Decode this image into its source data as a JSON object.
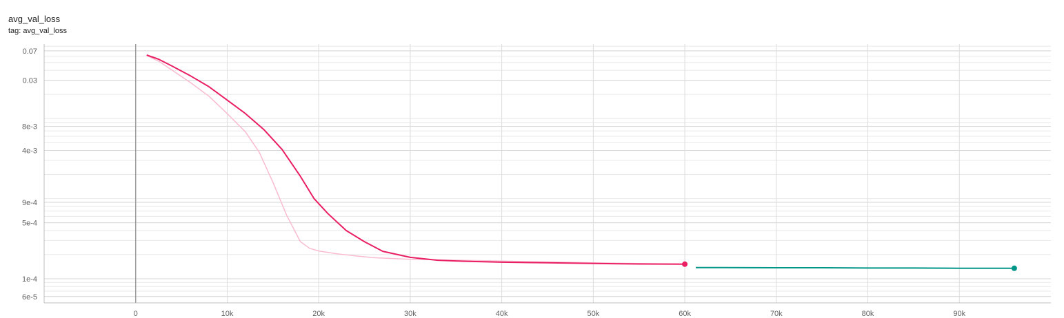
{
  "card": {
    "title": "avg_val_loss",
    "tag": "tag: avg_val_loss"
  },
  "chart_data": {
    "type": "line",
    "title": "avg_val_loss",
    "subtitle": "tag: avg_val_loss",
    "xlabel": "",
    "ylabel": "",
    "yscale": "log",
    "grid": true,
    "xlim": [
      -10000,
      100000
    ],
    "ylim": [
      5e-05,
      0.085
    ],
    "x_ticks": [
      {
        "value": 0,
        "label": "0"
      },
      {
        "value": 10000,
        "label": "10k"
      },
      {
        "value": 20000,
        "label": "20k"
      },
      {
        "value": 30000,
        "label": "30k"
      },
      {
        "value": 40000,
        "label": "40k"
      },
      {
        "value": 50000,
        "label": "50k"
      },
      {
        "value": 60000,
        "label": "60k"
      },
      {
        "value": 70000,
        "label": "70k"
      },
      {
        "value": 80000,
        "label": "80k"
      },
      {
        "value": 90000,
        "label": "90k"
      }
    ],
    "y_ticks": [
      {
        "value": 0.07,
        "label": "0.07"
      },
      {
        "value": 0.03,
        "label": "0.03"
      },
      {
        "value": 0.008,
        "label": "8e-3"
      },
      {
        "value": 0.004,
        "label": "4e-3"
      },
      {
        "value": 0.0009,
        "label": "9e-4"
      },
      {
        "value": 0.0005,
        "label": "5e-4"
      },
      {
        "value": 0.0001,
        "label": "1e-4"
      },
      {
        "value": 6e-05,
        "label": "6e-5"
      }
    ],
    "series": [
      {
        "color": "#e91e63",
        "raw_color": "#f8bbd0",
        "smoothed": [
          [
            1200,
            0.062
          ],
          [
            2500,
            0.055
          ],
          [
            4000,
            0.045
          ],
          [
            6000,
            0.034
          ],
          [
            8000,
            0.025
          ],
          [
            10000,
            0.017
          ],
          [
            12000,
            0.0115
          ],
          [
            14000,
            0.0073
          ],
          [
            16000,
            0.0041
          ],
          [
            18000,
            0.0019
          ],
          [
            19500,
            0.001
          ],
          [
            21000,
            0.00065
          ],
          [
            23000,
            0.0004
          ],
          [
            25000,
            0.00029
          ],
          [
            27000,
            0.00022
          ],
          [
            30000,
            0.000185
          ],
          [
            33000,
            0.00017
          ],
          [
            36000,
            0.000165
          ],
          [
            40000,
            0.000161
          ],
          [
            45000,
            0.000158
          ],
          [
            50000,
            0.000155
          ],
          [
            55000,
            0.000153
          ],
          [
            60000,
            0.000152
          ]
        ],
        "raw": [
          [
            1200,
            0.061
          ],
          [
            2500,
            0.052
          ],
          [
            4000,
            0.04
          ],
          [
            6000,
            0.028
          ],
          [
            8000,
            0.019
          ],
          [
            10000,
            0.0115
          ],
          [
            12000,
            0.0068
          ],
          [
            13500,
            0.0038
          ],
          [
            15000,
            0.0016
          ],
          [
            16500,
            0.00062
          ],
          [
            18000,
            0.00029
          ],
          [
            19000,
            0.00024
          ],
          [
            20000,
            0.000222
          ],
          [
            22000,
            0.000205
          ],
          [
            24000,
            0.000193
          ],
          [
            26000,
            0.000183
          ],
          [
            30000,
            0.000175
          ],
          [
            40000,
            0.000166
          ],
          [
            50000,
            0.000158
          ],
          [
            60000,
            0.000152
          ]
        ]
      },
      {
        "color": "#009688",
        "raw_color": "#80cbc4",
        "smoothed": [
          [
            61200,
            0.000138
          ],
          [
            64000,
            0.000138
          ],
          [
            70000,
            0.000137
          ],
          [
            75000,
            0.000137
          ],
          [
            80000,
            0.000136
          ],
          [
            85000,
            0.000136
          ],
          [
            90000,
            0.000135
          ],
          [
            96000,
            0.000135
          ]
        ],
        "raw": [
          [
            61200,
            0.000138
          ],
          [
            64000,
            0.000138
          ],
          [
            70000,
            0.000137
          ],
          [
            75000,
            0.000137
          ],
          [
            80000,
            0.000136
          ],
          [
            85000,
            0.000136
          ],
          [
            90000,
            0.000135
          ],
          [
            96000,
            0.000135
          ]
        ]
      }
    ]
  }
}
